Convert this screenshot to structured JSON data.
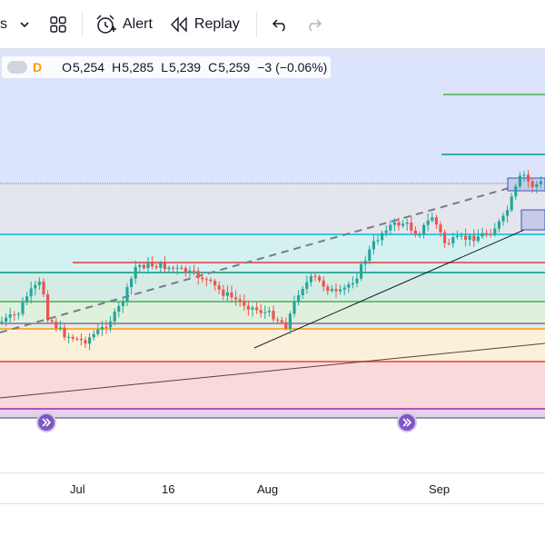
{
  "toolbar": {
    "partial_label": "s",
    "alert_label": "Alert",
    "replay_label": "Replay"
  },
  "legend": {
    "interval": "D",
    "open_key": "O",
    "open": "5,254",
    "high_key": "H",
    "high": "5,285",
    "low_key": "L",
    "low": "5,239",
    "close_key": "C",
    "close": "5,259",
    "change": "−3 (−0.06%)"
  },
  "xaxis": {
    "labels": [
      "Jul",
      "16",
      "Aug",
      "Sep"
    ]
  },
  "colors": {
    "up": "#26a69a",
    "down": "#ef5350",
    "accent": "#7e57c2"
  },
  "icons": [
    "chevron-down-icon",
    "layout-grid-icon",
    "alarm-clock-icon",
    "replay-rewind-icon",
    "undo-icon",
    "redo-icon",
    "replay-marker-icon"
  ]
}
